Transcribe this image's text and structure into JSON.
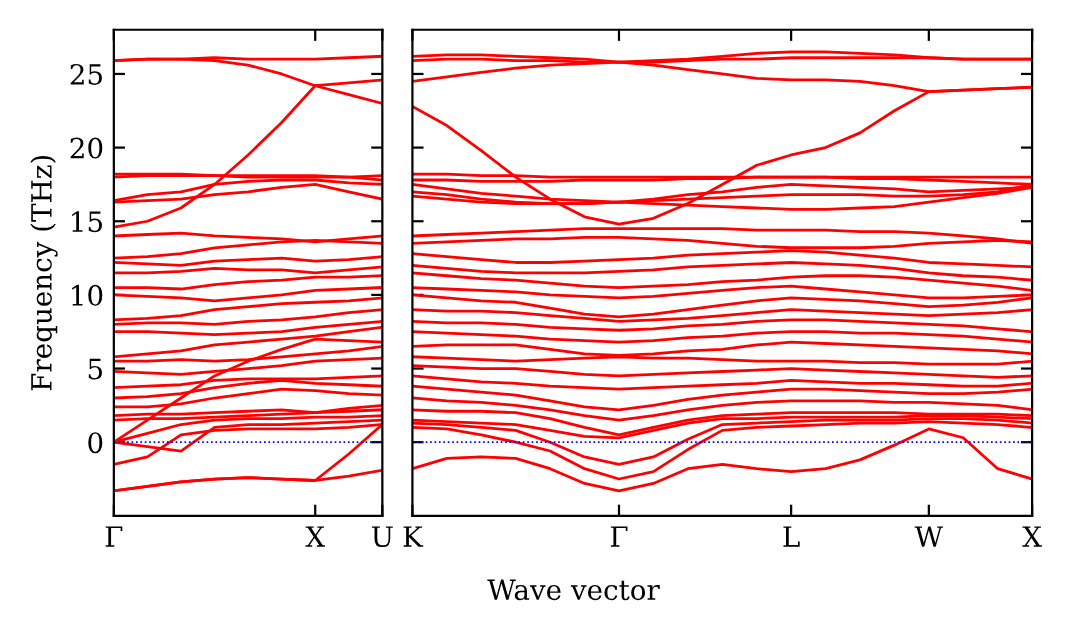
{
  "chart_data": [
    {
      "type": "line",
      "ylabel": "Frequency (THz)",
      "categories": [
        "Γ",
        null,
        null,
        null,
        null,
        null,
        "X",
        null,
        "U"
      ],
      "ylim": [
        -5,
        28
      ],
      "yticks": [
        0,
        5,
        10,
        15,
        20,
        25
      ],
      "ref_lines": [
        {
          "axis": "y",
          "value": 0,
          "color": "#0000ff",
          "line_style": "dotted"
        }
      ],
      "series": [
        {
          "color": "#ff0000",
          "values": [
            -3.3,
            -3.0,
            -2.7,
            -2.5,
            -2.4,
            -2.5,
            -2.6,
            -2.3,
            -1.9
          ]
        },
        {
          "color": "#ff0000",
          "values": [
            -3.3,
            -3.0,
            -2.7,
            -2.5,
            -2.4,
            -2.5,
            -2.6,
            -0.8,
            1.2
          ]
        },
        {
          "color": "#ff0000",
          "values": [
            -1.5,
            -1.0,
            0.5,
            0.8,
            0.9,
            0.9,
            0.9,
            1.0,
            1.2
          ]
        },
        {
          "color": "#ff0000",
          "values": [
            0,
            -0.3,
            -0.6,
            1.0,
            1.2,
            1.2,
            1.3,
            1.4,
            1.5
          ]
        },
        {
          "color": "#ff0000",
          "values": [
            0,
            0.6,
            1.2,
            1.5,
            1.6,
            1.6,
            1.7,
            1.7,
            1.8
          ]
        },
        {
          "color": "#ff0000",
          "values": [
            1.5,
            1.6,
            1.6,
            1.7,
            1.8,
            1.9,
            2.0,
            2.1,
            2.2
          ]
        },
        {
          "color": "#ff0000",
          "values": [
            1.8,
            1.9,
            1.9,
            2.0,
            2.1,
            2.2,
            2.0,
            2.3,
            2.5
          ]
        },
        {
          "color": "#ff0000",
          "values": [
            2.4,
            2.4,
            2.6,
            3.0,
            3.3,
            3.6,
            3.5,
            3.3,
            3.2
          ]
        },
        {
          "color": "#ff0000",
          "values": [
            3.0,
            3.1,
            3.3,
            3.7,
            4.0,
            4.2,
            4.0,
            3.9,
            3.8
          ]
        },
        {
          "color": "#ff0000",
          "values": [
            3.7,
            3.8,
            3.9,
            4.2,
            4.3,
            4.3,
            4.3,
            4.4,
            4.5
          ]
        },
        {
          "color": "#ff0000",
          "values": [
            0,
            1.5,
            3.0,
            4.5,
            5.5,
            6.3,
            7.0,
            6.9,
            6.8
          ]
        },
        {
          "color": "#ff0000",
          "values": [
            4.8,
            4.7,
            4.6,
            4.8,
            5.0,
            5.2,
            5.5,
            5.6,
            5.7
          ]
        },
        {
          "color": "#ff0000",
          "values": [
            5.5,
            5.5,
            5.6,
            5.5,
            5.6,
            5.8,
            6.0,
            6.2,
            6.5
          ]
        },
        {
          "color": "#ff0000",
          "values": [
            5.8,
            6.0,
            6.2,
            6.6,
            6.8,
            7.0,
            7.2,
            7.5,
            7.8
          ]
        },
        {
          "color": "#ff0000",
          "values": [
            7.5,
            7.5,
            7.4,
            7.3,
            7.4,
            7.5,
            7.8,
            8.0,
            8.2
          ]
        },
        {
          "color": "#ff0000",
          "values": [
            8.0,
            8.1,
            8.1,
            8.0,
            8.2,
            8.3,
            8.5,
            8.8,
            9.0
          ]
        },
        {
          "color": "#ff0000",
          "values": [
            8.3,
            8.4,
            8.6,
            9.0,
            9.2,
            9.4,
            9.5,
            9.6,
            9.8
          ]
        },
        {
          "color": "#ff0000",
          "values": [
            10.0,
            9.9,
            9.8,
            9.6,
            9.8,
            10.0,
            10.3,
            10.4,
            10.5
          ]
        },
        {
          "color": "#ff0000",
          "values": [
            10.5,
            10.5,
            10.4,
            10.7,
            10.9,
            11.0,
            11.2,
            11.2,
            11.3
          ]
        },
        {
          "color": "#ff0000",
          "values": [
            11.5,
            11.5,
            11.6,
            11.8,
            11.7,
            11.7,
            11.5,
            11.7,
            11.9
          ]
        },
        {
          "color": "#ff0000",
          "values": [
            12.2,
            12.1,
            12.0,
            12.3,
            12.4,
            12.5,
            12.3,
            12.4,
            12.6
          ]
        },
        {
          "color": "#ff0000",
          "values": [
            12.5,
            12.6,
            12.8,
            13.2,
            13.4,
            13.6,
            13.7,
            13.6,
            13.5
          ]
        },
        {
          "color": "#ff0000",
          "values": [
            14.0,
            14.1,
            14.2,
            14.0,
            13.9,
            13.8,
            13.6,
            13.8,
            14.0
          ]
        },
        {
          "color": "#ff0000",
          "values": [
            14.6,
            15.0,
            15.9,
            17.5,
            19.5,
            21.7,
            24.2,
            23.6,
            23.0
          ]
        },
        {
          "color": "#ff0000",
          "values": [
            25.9,
            26.0,
            26.0,
            25.9,
            25.6,
            25.0,
            24.2,
            24.4,
            24.6
          ]
        },
        {
          "color": "#ff0000",
          "values": [
            25.9,
            26.0,
            26.0,
            26.1,
            26.0,
            26.0,
            26.0,
            26.1,
            26.2
          ]
        },
        {
          "color": "#ff0000",
          "values": [
            16.3,
            16.4,
            16.5,
            16.8,
            17.0,
            17.3,
            17.5,
            17.0,
            16.5
          ]
        },
        {
          "color": "#ff0000",
          "values": [
            16.4,
            16.8,
            17.0,
            17.5,
            17.7,
            17.8,
            17.8,
            17.6,
            17.5
          ]
        },
        {
          "color": "#ff0000",
          "values": [
            18.0,
            18.1,
            18.1,
            18.1,
            18.0,
            18.0,
            18.0,
            18.0,
            18.1
          ]
        },
        {
          "color": "#ff0000",
          "values": [
            18.2,
            18.2,
            18.2,
            18.1,
            18.1,
            18.1,
            18.1,
            18.0,
            17.8
          ]
        }
      ]
    },
    {
      "type": "line",
      "xlabel": "Wave vector",
      "tick_labels": "x",
      "categories": [
        "K",
        null,
        null,
        null,
        null,
        null,
        "Γ",
        null,
        null,
        null,
        null,
        "L",
        null,
        null,
        null,
        "W",
        null,
        null,
        "X"
      ],
      "ylim": [
        -5,
        28
      ],
      "yticks": [
        0,
        5,
        10,
        15,
        20,
        25
      ],
      "ref_lines": [
        {
          "axis": "y",
          "value": 0,
          "color": "#0000ff",
          "line_style": "dotted"
        }
      ],
      "series": [
        {
          "color": "#ff0000",
          "values": [
            26.2,
            26.3,
            26.3,
            26.2,
            26.1,
            26.0,
            25.8,
            25.9,
            26.0,
            26.2,
            26.4,
            26.5,
            26.5,
            26.4,
            26.3,
            26.1,
            26.0,
            26.0,
            26.0
          ]
        },
        {
          "color": "#ff0000",
          "values": [
            25.9,
            26.0,
            26.0,
            25.9,
            25.9,
            25.8,
            25.8,
            25.8,
            25.9,
            26.0,
            26.0,
            26.1,
            26.1,
            26.1,
            26.1,
            26.1,
            26.0,
            26.0,
            26.0
          ]
        },
        {
          "color": "#ff0000",
          "values": [
            24.5,
            24.8,
            25.1,
            25.4,
            25.6,
            25.7,
            25.8,
            25.6,
            25.3,
            25.0,
            24.7,
            24.6,
            24.6,
            24.5,
            24.2,
            23.8,
            23.9,
            24.0,
            24.1
          ]
        },
        {
          "color": "#ff0000",
          "values": [
            22.8,
            21.5,
            19.8,
            18.0,
            16.5,
            15.3,
            14.8,
            15.2,
            16.2,
            17.5,
            18.8,
            19.5,
            20.0,
            21.0,
            22.5,
            23.8,
            23.9,
            24.0,
            24.1
          ]
        },
        {
          "color": "#ff0000",
          "values": [
            18.2,
            18.2,
            18.1,
            18.1,
            18.0,
            18.0,
            18.0,
            18.0,
            18.0,
            18.0,
            18.0,
            18.0,
            18.0,
            18.0,
            18.0,
            18.0,
            18.0,
            18.0,
            18.0
          ]
        },
        {
          "color": "#ff0000",
          "values": [
            17.8,
            17.8,
            17.7,
            17.7,
            17.7,
            17.8,
            17.8,
            17.8,
            17.9,
            17.9,
            18.0,
            18.0,
            18.0,
            17.9,
            17.9,
            17.8,
            17.7,
            17.6,
            17.5
          ]
        },
        {
          "color": "#ff0000",
          "values": [
            17.5,
            17.2,
            16.9,
            16.7,
            16.5,
            16.4,
            16.3,
            16.5,
            16.8,
            17.0,
            17.3,
            17.5,
            17.4,
            17.3,
            17.2,
            17.0,
            17.1,
            17.2,
            17.3
          ]
        },
        {
          "color": "#ff0000",
          "values": [
            17.0,
            16.8,
            16.5,
            16.3,
            16.2,
            16.2,
            16.3,
            16.4,
            16.5,
            16.6,
            16.7,
            16.8,
            16.8,
            16.8,
            16.7,
            16.7,
            16.8,
            17.0,
            17.5
          ]
        },
        {
          "color": "#ff0000",
          "values": [
            16.7,
            16.5,
            16.3,
            16.2,
            16.2,
            16.2,
            16.3,
            16.2,
            16.1,
            16.0,
            15.9,
            15.8,
            15.8,
            15.9,
            16.0,
            16.3,
            16.6,
            16.9,
            17.3
          ]
        },
        {
          "color": "#ff0000",
          "values": [
            14.0,
            14.1,
            14.2,
            14.3,
            14.4,
            14.5,
            14.5,
            14.5,
            14.5,
            14.5,
            14.4,
            14.4,
            14.4,
            14.3,
            14.3,
            14.2,
            14.0,
            13.8,
            13.5
          ]
        },
        {
          "color": "#ff0000",
          "values": [
            13.5,
            13.6,
            13.7,
            13.8,
            13.8,
            13.9,
            13.9,
            13.8,
            13.7,
            13.5,
            13.3,
            13.2,
            13.2,
            13.2,
            13.3,
            13.5,
            13.6,
            13.7,
            13.6
          ]
        },
        {
          "color": "#ff0000",
          "values": [
            12.8,
            12.6,
            12.4,
            12.2,
            12.2,
            12.3,
            12.4,
            12.5,
            12.7,
            12.8,
            12.9,
            13.0,
            12.9,
            12.7,
            12.5,
            12.2,
            12.1,
            12.0,
            11.9
          ]
        },
        {
          "color": "#ff0000",
          "values": [
            12.0,
            11.8,
            11.6,
            11.5,
            11.5,
            11.5,
            11.6,
            11.7,
            11.9,
            12.0,
            12.1,
            12.2,
            12.1,
            12.0,
            11.8,
            11.5,
            11.3,
            11.2,
            11.0
          ]
        },
        {
          "color": "#ff0000",
          "values": [
            11.5,
            11.3,
            11.1,
            11.0,
            10.8,
            10.6,
            10.5,
            10.6,
            10.7,
            10.9,
            11.0,
            11.2,
            11.3,
            11.3,
            11.2,
            11.0,
            10.8,
            10.6,
            10.3
          ]
        },
        {
          "color": "#ff0000",
          "values": [
            10.5,
            10.4,
            10.3,
            10.2,
            10.0,
            9.9,
            9.8,
            9.9,
            10.1,
            10.3,
            10.5,
            10.6,
            10.4,
            10.2,
            10.0,
            9.8,
            9.8,
            9.9,
            10.0
          ]
        },
        {
          "color": "#ff0000",
          "values": [
            10.0,
            9.8,
            9.6,
            9.5,
            9.1,
            8.7,
            8.5,
            8.7,
            9.0,
            9.3,
            9.6,
            9.8,
            9.7,
            9.6,
            9.4,
            9.2,
            9.3,
            9.5,
            9.8
          ]
        },
        {
          "color": "#ff0000",
          "values": [
            9.0,
            8.9,
            8.9,
            8.8,
            8.6,
            8.4,
            8.2,
            8.3,
            8.4,
            8.6,
            8.8,
            9.0,
            8.9,
            8.8,
            8.7,
            8.6,
            8.7,
            8.8,
            9.0
          ]
        },
        {
          "color": "#ff0000",
          "values": [
            8.2,
            8.1,
            8.1,
            8.0,
            7.8,
            7.7,
            7.6,
            7.7,
            7.9,
            8.0,
            8.2,
            8.3,
            8.3,
            8.2,
            8.1,
            8.0,
            7.9,
            7.7,
            7.5
          ]
        },
        {
          "color": "#ff0000",
          "values": [
            7.5,
            7.4,
            7.3,
            7.2,
            7.0,
            6.9,
            6.8,
            6.9,
            7.1,
            7.2,
            7.4,
            7.5,
            7.5,
            7.4,
            7.4,
            7.3,
            7.2,
            7.0,
            6.8
          ]
        },
        {
          "color": "#ff0000",
          "values": [
            6.5,
            6.6,
            6.6,
            6.6,
            6.3,
            6.0,
            5.9,
            6.0,
            6.2,
            6.3,
            6.6,
            6.8,
            6.7,
            6.6,
            6.5,
            6.4,
            6.3,
            6.2,
            6.0
          ]
        },
        {
          "color": "#ff0000",
          "values": [
            5.8,
            5.7,
            5.6,
            5.5,
            5.6,
            5.7,
            5.8,
            5.7,
            5.7,
            5.6,
            5.5,
            5.5,
            5.5,
            5.4,
            5.4,
            5.3,
            5.3,
            5.3,
            5.5
          ]
        },
        {
          "color": "#ff0000",
          "values": [
            5.2,
            5.1,
            5.0,
            5.0,
            4.8,
            4.6,
            4.5,
            4.6,
            4.7,
            4.8,
            4.9,
            5.0,
            4.9,
            4.8,
            4.7,
            4.6,
            4.5,
            4.4,
            4.5
          ]
        },
        {
          "color": "#ff0000",
          "values": [
            4.5,
            4.3,
            4.1,
            4.0,
            3.8,
            3.7,
            3.6,
            3.7,
            3.8,
            3.9,
            4.0,
            4.2,
            4.1,
            4.0,
            4.0,
            3.9,
            3.8,
            3.8,
            4.0
          ]
        },
        {
          "color": "#ff0000",
          "values": [
            3.8,
            3.6,
            3.4,
            3.2,
            2.8,
            2.4,
            2.2,
            2.5,
            2.9,
            3.2,
            3.4,
            3.6,
            3.6,
            3.5,
            3.4,
            3.3,
            3.3,
            3.4,
            3.6
          ]
        },
        {
          "color": "#ff0000",
          "values": [
            3.0,
            2.8,
            2.7,
            2.5,
            2.2,
            1.8,
            1.5,
            1.8,
            2.2,
            2.5,
            2.7,
            2.8,
            2.8,
            2.8,
            2.7,
            2.7,
            2.6,
            2.5,
            2.2
          ]
        },
        {
          "color": "#ff0000",
          "values": [
            2.2,
            2.1,
            2.1,
            2.0,
            1.6,
            1.0,
            0.5,
            1.0,
            1.5,
            1.8,
            1.9,
            2.0,
            2.0,
            2.0,
            2.0,
            1.9,
            1.9,
            1.9,
            1.8
          ]
        },
        {
          "color": "#ff0000",
          "values": [
            1.5,
            1.4,
            1.3,
            1.2,
            0.8,
            0.4,
            0.3,
            0.8,
            1.3,
            1.6,
            1.6,
            1.7,
            1.7,
            1.7,
            1.7,
            1.8,
            1.8,
            1.7,
            1.6
          ]
        },
        {
          "color": "#ff0000",
          "values": [
            1.3,
            1.2,
            1.0,
            0.8,
            0.0,
            -1.0,
            -1.5,
            -1.0,
            0.2,
            1.2,
            1.3,
            1.4,
            1.5,
            1.5,
            1.5,
            1.6,
            1.6,
            1.5,
            1.3
          ]
        },
        {
          "color": "#ff0000",
          "values": [
            1.0,
            0.9,
            0.5,
            0.0,
            -0.6,
            -1.8,
            -2.5,
            -2.0,
            -0.5,
            0.8,
            1.0,
            1.1,
            1.2,
            1.3,
            1.3,
            1.4,
            1.3,
            1.2,
            1.0
          ]
        },
        {
          "color": "#ff0000",
          "values": [
            -1.8,
            -1.1,
            -1.0,
            -1.1,
            -1.8,
            -2.8,
            -3.3,
            -2.8,
            -1.8,
            -1.5,
            -1.8,
            -2.0,
            -1.8,
            -1.2,
            -0.2,
            0.9,
            0.3,
            -1.8,
            -2.5
          ]
        }
      ]
    }
  ]
}
